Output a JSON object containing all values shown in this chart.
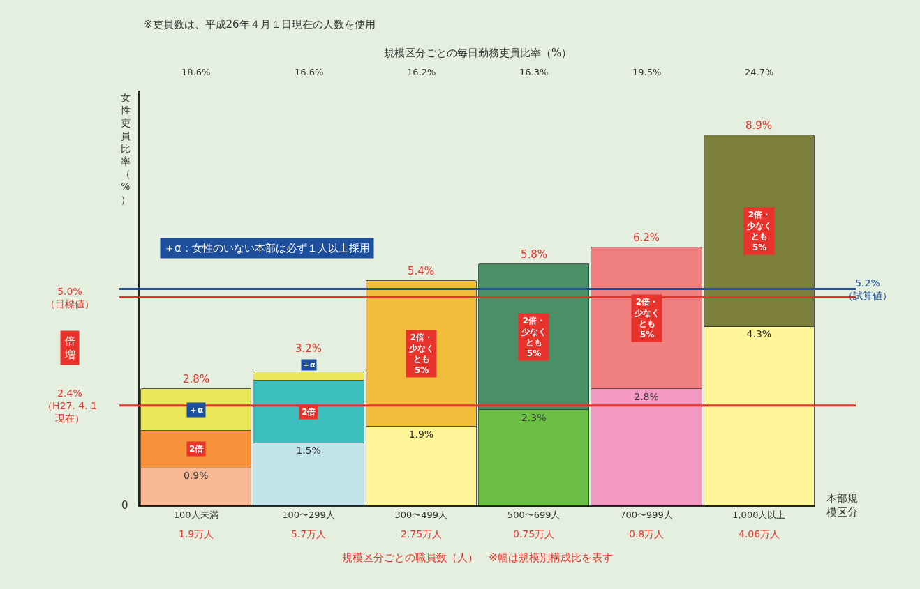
{
  "chart_data": {
    "type": "bar",
    "stacked": true,
    "xlabel": "規模区分ごとの職員数（人）　※幅は規模別構成比を表す",
    "x2label": "規模区分ごとの毎日勤務吏員比率（%）",
    "ylabel": "女性吏員比率（%）",
    "categories": [
      "100人未満",
      "100〜299人",
      "300〜499人",
      "500〜699人",
      "700〜999人",
      "1,000人以上"
    ],
    "series": [
      {
        "colors": [
          "#f9b994",
          "#c0e4ea",
          "#fff599",
          "#6bbf44",
          "#f59bc3",
          "#fff599"
        ],
        "values": [
          0.9,
          1.5,
          1.9,
          2.3,
          2.8,
          4.3
        ],
        "value_labels": [
          "0.9%",
          "1.5%",
          "1.9%",
          "2.3%",
          "2.8%",
          "4.3%"
        ]
      },
      {
        "colors": [
          "#f7923a",
          "#3dbfbf",
          "#f2bd3a",
          "#4a9066",
          "#f08080",
          "#7b7f3b"
        ],
        "values": [
          0.9,
          1.5,
          3.5,
          3.5,
          3.4,
          4.6
        ]
      },
      {
        "colors": [
          "#e8e85a",
          "#e8e85a",
          null,
          null,
          null,
          null
        ],
        "values": [
          1.0,
          0.2,
          null,
          null,
          null,
          null
        ]
      }
    ],
    "totals": [
      "2.8%",
      "3.2%",
      "5.4%",
      "5.8%",
      "6.2%",
      "8.9%"
    ],
    "grid": false,
    "ref_lines": [
      {
        "axis": "y",
        "value": 2.4,
        "label": "2.4%（H27. 4. 1現在）",
        "color": "#e8332c"
      },
      {
        "axis": "y",
        "value": 5.0,
        "label": "5.0%（目標値）",
        "color": "#e8332c"
      },
      {
        "axis": "y",
        "value": 5.2,
        "label": "5.2%（試算値）",
        "color": "#1d4f9c"
      }
    ],
    "annotations": [
      "※吏員数は、平成26年４月１日現在の人数を使用",
      "＋α：女性のいない本部は必ず１人以上採用",
      "倍増",
      "本部規模区分",
      "0",
      "18.6%",
      "1.9万人",
      "16.6%",
      "5.7万人",
      "16.2%",
      "2.75万人",
      "16.3%",
      "0.75万人",
      "19.5%",
      "0.8万人",
      "24.7%",
      "4.06万人",
      "2倍",
      "＋α",
      "2倍",
      "＋α",
      "2倍・少なくとも5%",
      "2倍・少なくとも5%",
      "2倍・少なくとも5%",
      "2倍・少なくとも5%"
    ]
  }
}
